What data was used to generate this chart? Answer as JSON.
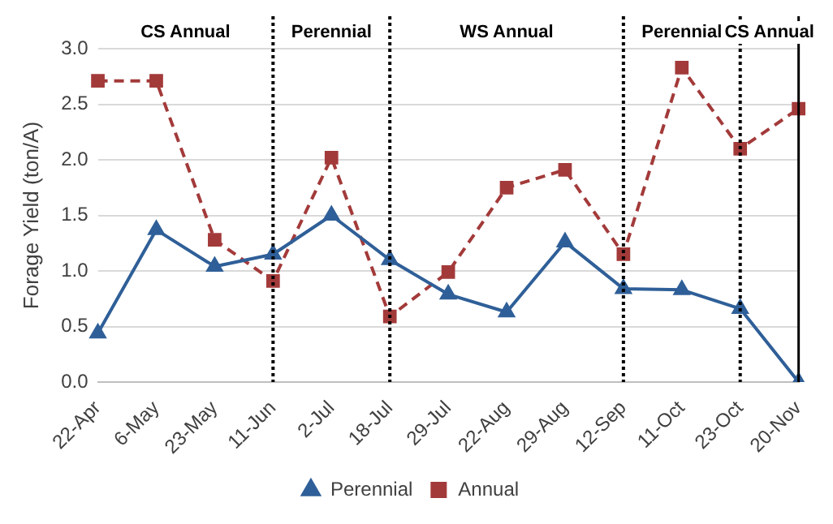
{
  "chart_data": {
    "type": "line",
    "ylabel": "Forage Yield (ton/A)",
    "categories": [
      "22-Apr",
      "6-May",
      "23-May",
      "11-Jun",
      "2-Jul",
      "18-Jul",
      "29-Jul",
      "22-Aug",
      "29-Aug",
      "12-Sep",
      "11-Oct",
      "23-Oct",
      "20-Nov"
    ],
    "series": [
      {
        "name": "Perennial",
        "color": "#2f5f98",
        "marker": "triangle",
        "line_style": "solid",
        "values": [
          0.44,
          1.37,
          1.04,
          1.15,
          1.5,
          1.1,
          0.79,
          0.63,
          1.26,
          0.84,
          0.83,
          0.66,
          0.0
        ]
      },
      {
        "name": "Annual",
        "color": "#a33a3a",
        "marker": "square",
        "line_style": "dashed",
        "values": [
          2.71,
          2.71,
          1.28,
          0.91,
          2.02,
          0.59,
          0.99,
          1.75,
          1.91,
          1.15,
          2.83,
          2.1,
          2.46
        ]
      }
    ],
    "ylim": [
      0,
      3
    ],
    "yticks": [
      {
        "value": 0,
        "label": "0.0"
      },
      {
        "value": 0.5,
        "label": "0.5"
      },
      {
        "value": 1,
        "label": "1.0"
      },
      {
        "value": 1.5,
        "label": "1.5"
      },
      {
        "value": 2,
        "label": "2.0"
      },
      {
        "value": 2.5,
        "label": "2.5"
      },
      {
        "value": 3,
        "label": "3.0"
      }
    ],
    "ref_lines": [
      {
        "axis": "x",
        "value": "11-Jun",
        "color": "#000000",
        "line_style": "dotted"
      },
      {
        "axis": "x",
        "value": "18-Jul",
        "color": "#000000",
        "line_style": "dotted"
      },
      {
        "axis": "x",
        "value": "12-Sep",
        "color": "#000000",
        "line_style": "dotted"
      },
      {
        "axis": "x",
        "value": "23-Oct",
        "color": "#000000",
        "line_style": "dotted"
      },
      {
        "axis": "x",
        "value": "20-Nov",
        "color": "#000000",
        "line_style": "solid"
      }
    ],
    "annotations": [
      "CS Annual",
      "Perennial",
      "WS Annual",
      "Perennial",
      "CS Annual"
    ],
    "grid": "y",
    "legend": "bottom"
  }
}
